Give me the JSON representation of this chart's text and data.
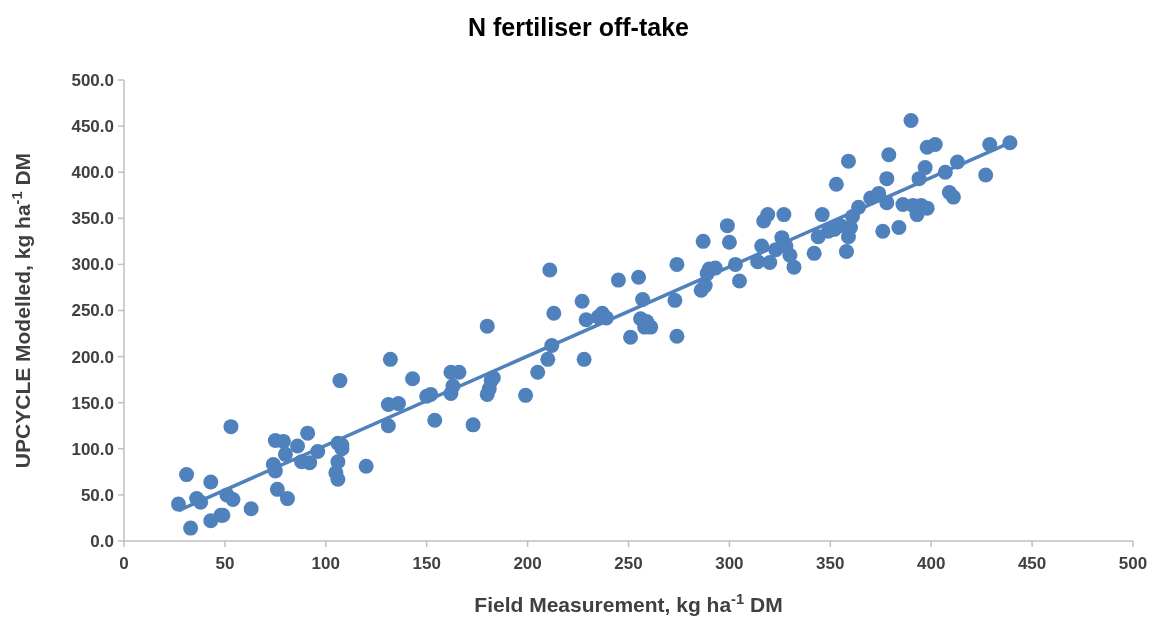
{
  "chart_data": {
    "type": "scatter",
    "title": "N fertiliser off-take",
    "xlabel": "Field Measurement, kg ha$^{-1}$ DM",
    "ylabel": "UPCYCLE Modelled, kg ha$^{-1}$ DM",
    "xlim": [
      0,
      500
    ],
    "xticks": [
      0,
      50,
      100,
      150,
      200,
      250,
      300,
      350,
      400,
      450,
      500
    ],
    "ylim": [
      0,
      500
    ],
    "yticks": [
      {
        "value": 0,
        "label": "0.0"
      },
      {
        "value": 50,
        "label": "50.0"
      },
      {
        "value": 100,
        "label": "100.0"
      },
      {
        "value": 150,
        "label": "150.0"
      },
      {
        "value": 200,
        "label": "200.0"
      },
      {
        "value": 250,
        "label": "250.0"
      },
      {
        "value": 300,
        "label": "300.0"
      },
      {
        "value": 350,
        "label": "350.0"
      },
      {
        "value": 400,
        "label": "400.0"
      },
      {
        "value": 450,
        "label": "450.0"
      },
      {
        "value": 500,
        "label": "500.0"
      }
    ],
    "marker": "circle",
    "series": [
      {
        "color": "#4f81bd",
        "x": [
          27,
          31,
          33,
          36,
          38,
          43,
          43,
          48,
          49,
          51,
          53,
          54,
          63,
          74,
          75,
          75,
          76,
          79,
          80,
          81,
          86,
          88,
          91,
          92,
          96,
          105,
          106,
          106,
          106,
          107,
          108,
          108,
          120,
          131,
          131,
          132,
          136,
          143,
          150,
          152,
          154,
          162,
          162,
          163,
          166,
          173,
          180,
          180,
          181,
          182,
          183,
          199,
          205,
          210,
          211,
          212,
          213,
          227,
          228,
          229,
          235,
          237,
          239,
          245,
          251,
          255,
          256,
          257,
          258,
          259,
          261,
          273,
          274,
          274,
          286,
          287,
          288,
          289,
          290,
          293,
          299,
          300,
          303,
          305,
          314,
          316,
          317,
          319,
          320,
          323,
          326,
          327,
          328,
          330,
          332,
          342,
          344,
          346,
          349,
          352,
          353,
          355,
          358,
          359,
          359,
          360,
          361,
          364,
          370,
          374,
          376,
          378,
          378,
          379,
          384,
          386,
          390,
          391,
          393,
          394,
          395,
          397,
          398,
          398,
          402,
          407,
          409,
          411,
          413,
          427,
          429,
          439
        ],
        "values": [
          40,
          72,
          14,
          46,
          42,
          22,
          64,
          28,
          28,
          50,
          124,
          45,
          35,
          83,
          109,
          76,
          56,
          108,
          94,
          46,
          103,
          86,
          117,
          85,
          97,
          74,
          106,
          86,
          67,
          174,
          104,
          100,
          81,
          148,
          125,
          197,
          149,
          176,
          157,
          159,
          131,
          160,
          183,
          168,
          183,
          126,
          233,
          159,
          165,
          174,
          177,
          158,
          183,
          197,
          294,
          212,
          247,
          260,
          197,
          240,
          243,
          247,
          242,
          283,
          221,
          286,
          241,
          262,
          232,
          238,
          232,
          261,
          300,
          222,
          272,
          325,
          277,
          290,
          295,
          296,
          342,
          324,
          300,
          282,
          303,
          320,
          347,
          354,
          302,
          316,
          329,
          354,
          320,
          310,
          297,
          312,
          330,
          354,
          336,
          338,
          387,
          342,
          314,
          412,
          330,
          340,
          352,
          362,
          372,
          377,
          336,
          393,
          367,
          419,
          340,
          365,
          456,
          364,
          354,
          393,
          364,
          405,
          361,
          427,
          430,
          400,
          378,
          373,
          411,
          397,
          430,
          432
        ]
      },
      {
        "type": "line",
        "color": "#4f81bd",
        "marker": "none",
        "x": [
          27,
          438
        ],
        "values": [
          33,
          431
        ]
      }
    ]
  }
}
